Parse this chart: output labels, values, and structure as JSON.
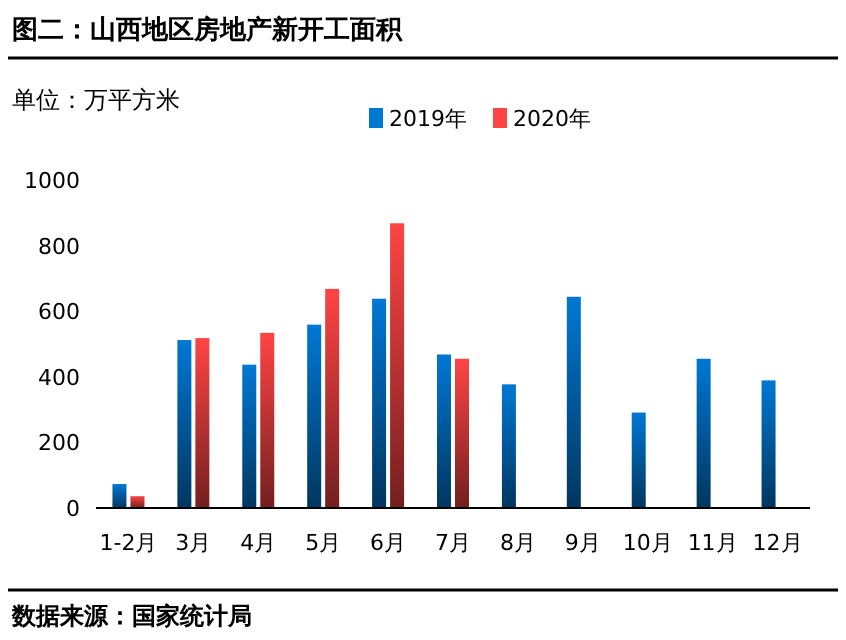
{
  "chart_data": {
    "type": "bar",
    "title": "图二：山西地区房地产新开工面积",
    "ylabel": "单位：万平方米",
    "annotations": [
      "数据来源：国家统计局"
    ],
    "categories": [
      "1-2月",
      "3月",
      "4月",
      "5月",
      "6月",
      "7月",
      "8月",
      "9月",
      "10月",
      "11月",
      "12月"
    ],
    "series": [
      {
        "name": "2019年",
        "color": "#0078d4",
        "values": [
          73,
          512,
          437,
          559,
          638,
          468,
          377,
          644,
          291,
          455,
          389
        ]
      },
      {
        "name": "2020年",
        "color": "#ff4444",
        "values": [
          36,
          518,
          534,
          668,
          868,
          455,
          null,
          null,
          null,
          null,
          null
        ]
      }
    ],
    "ylim": [
      0,
      1000
    ],
    "yticks": [
      0,
      200,
      400,
      600,
      800,
      1000
    ],
    "grid": false,
    "legend": "top"
  }
}
